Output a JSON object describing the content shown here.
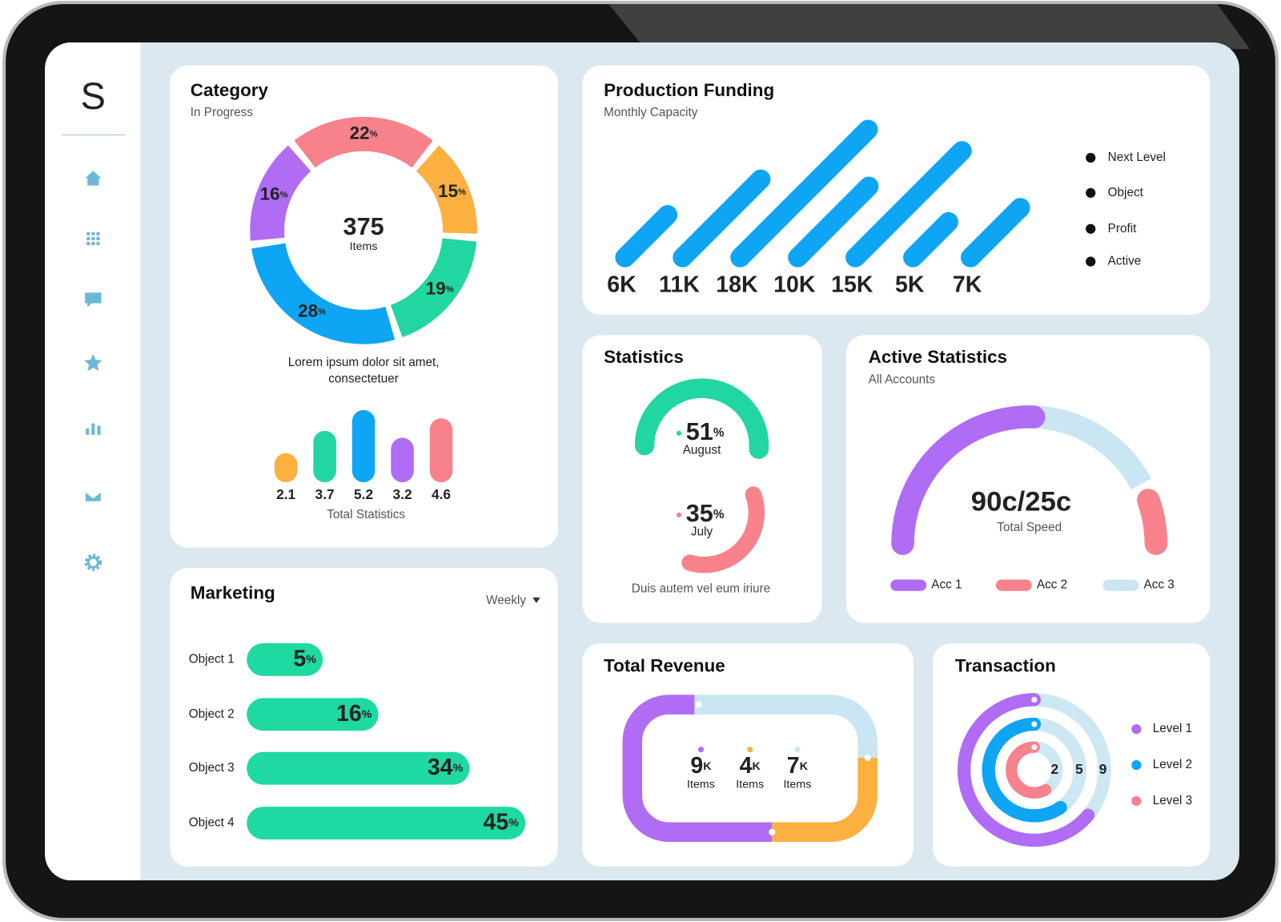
{
  "sidebar": {
    "logo": "S"
  },
  "category": {
    "title": "Category",
    "subtitle": "In Progress",
    "total": {
      "value": 375,
      "label": "Items"
    },
    "segments": [
      {
        "value": 22,
        "unit": "%",
        "color": "#f7828c"
      },
      {
        "value": 15,
        "unit": "%",
        "color": "#fbb040"
      },
      {
        "value": 19,
        "unit": "%",
        "color": "#21d6a0"
      },
      {
        "value": 28,
        "unit": "%",
        "color": "#0ea5f4"
      },
      {
        "value": 16,
        "unit": "%",
        "color": "#b06cf4"
      }
    ],
    "description": [
      "Lorem ipsum dolor sit amet,",
      "consectetuer"
    ],
    "bars": [
      {
        "value": 2.1,
        "color": "#fbb040"
      },
      {
        "value": 3.7,
        "color": "#21d6a0"
      },
      {
        "value": 5.2,
        "color": "#0ea5f4"
      },
      {
        "value": 3.2,
        "color": "#b06cf4"
      },
      {
        "value": 4.6,
        "color": "#f7828c"
      }
    ],
    "bars_caption": "Total Statistics"
  },
  "production_funding": {
    "title": "Production Funding",
    "subtitle": "Monthly Capacity",
    "color": "#0ea5f4",
    "bars": [
      {
        "value": 6,
        "label": "6K"
      },
      {
        "value": 11,
        "label": "11K"
      },
      {
        "value": 18,
        "label": "18K"
      },
      {
        "value": 10,
        "label": "10K"
      },
      {
        "value": 15,
        "label": "15K"
      },
      {
        "value": 5,
        "label": "5K"
      },
      {
        "value": 7,
        "label": "7K"
      }
    ],
    "legend": [
      "Next Level",
      "Object",
      "Profit",
      "Active"
    ]
  },
  "statistics": {
    "title": "Statistics",
    "gauges": [
      {
        "value": 51,
        "unit": "%",
        "label": "August",
        "color": "#21d6a0"
      },
      {
        "value": 35,
        "unit": "%",
        "label": "July",
        "color": "#f7828c"
      }
    ],
    "caption": "Duis autem vel eum iriure"
  },
  "active_statistics": {
    "title": "Active Statistics",
    "subtitle": "All Accounts",
    "value": "90c/25c",
    "label": "Total Speed",
    "legend": [
      {
        "name": "Acc 1",
        "color": "#b06cf4"
      },
      {
        "name": "Acc 2",
        "color": "#f7828c"
      },
      {
        "name": "Acc 3",
        "color": "#c9e6f2"
      }
    ]
  },
  "marketing": {
    "title": "Marketing",
    "period": "Weekly",
    "color": "#1fd9a3",
    "rows": [
      {
        "name": "Object 1",
        "value": 5,
        "unit": "%"
      },
      {
        "name": "Object 2",
        "value": 16,
        "unit": "%"
      },
      {
        "name": "Object 3",
        "value": 34,
        "unit": "%"
      },
      {
        "name": "Object 4",
        "value": 45,
        "unit": "%"
      }
    ]
  },
  "total_revenue": {
    "title": "Total Revenue",
    "items": [
      {
        "value": 9,
        "unit": "K",
        "label": "Items",
        "color": "#b06cf4"
      },
      {
        "value": 4,
        "unit": "K",
        "label": "Items",
        "color": "#fbb040"
      },
      {
        "value": 7,
        "unit": "K",
        "label": "Items",
        "color": "#c9e6f2"
      }
    ]
  },
  "transaction": {
    "title": "Transaction",
    "values": [
      2,
      5,
      9
    ],
    "legend": [
      {
        "name": "Level 1",
        "color": "#b06cf4"
      },
      {
        "name": "Level 2",
        "color": "#0ea5f4"
      },
      {
        "name": "Level 3",
        "color": "#f7828c"
      }
    ]
  }
}
